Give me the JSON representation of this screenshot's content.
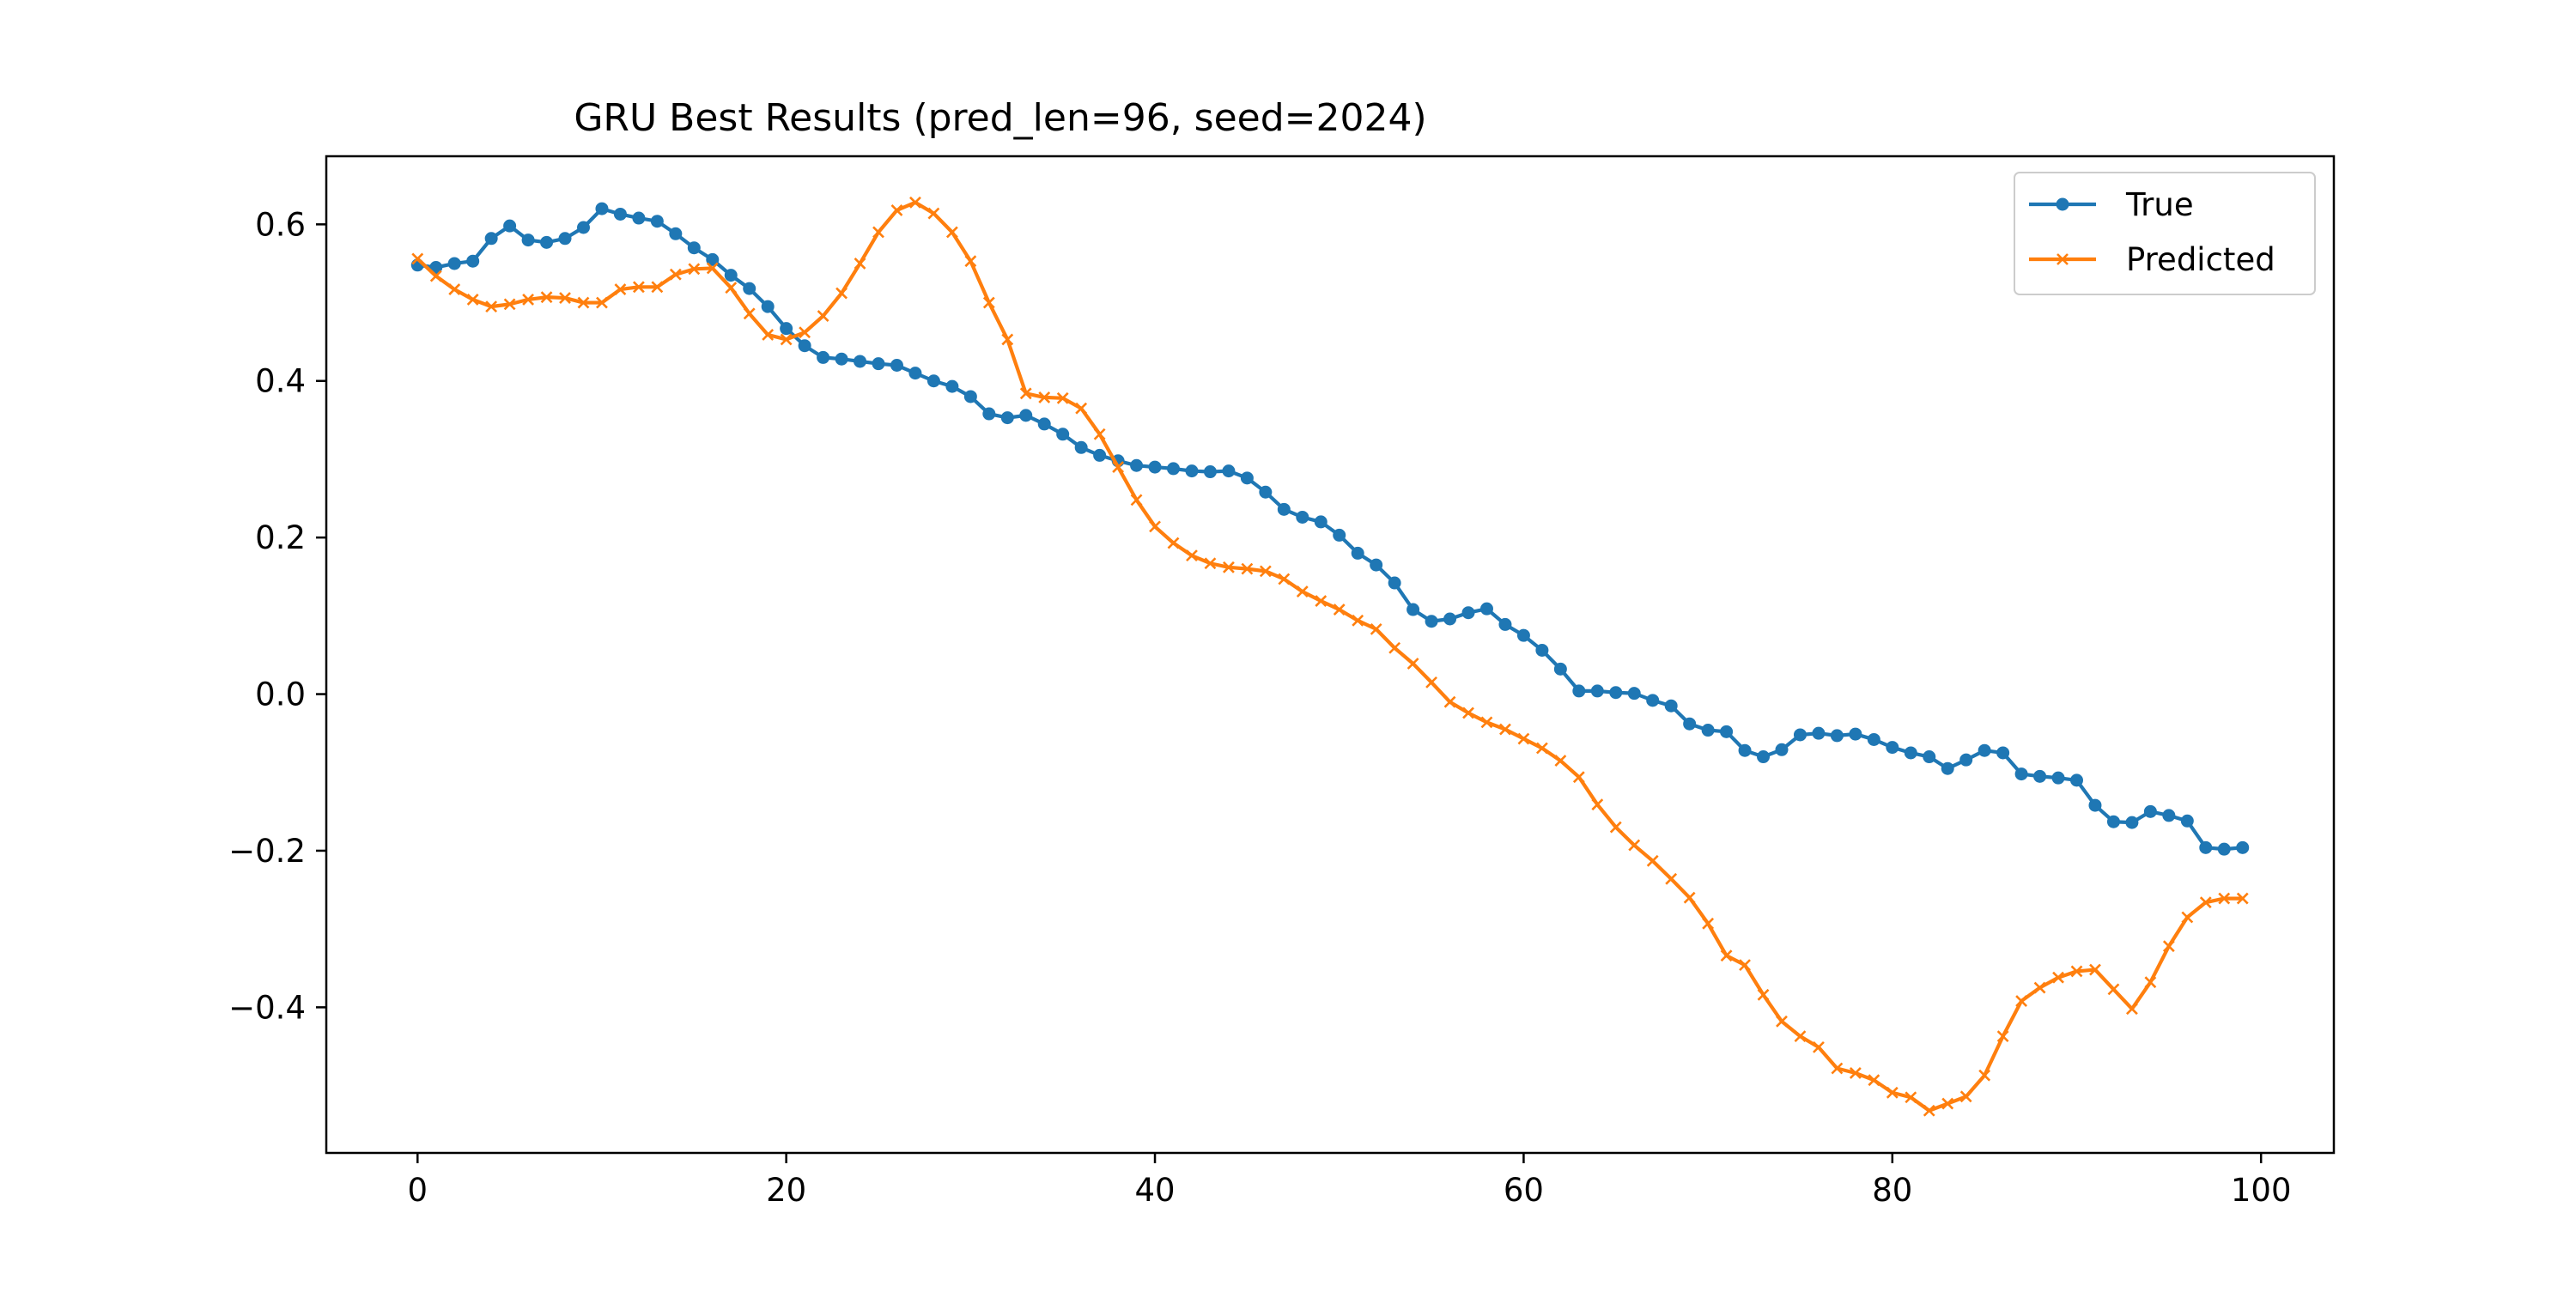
{
  "chart_data": {
    "type": "line",
    "title": "GRU Best Results (pred_len=96, seed=2024)",
    "xlabel": "",
    "ylabel": "",
    "xlim": [
      -4.95,
      103.95
    ],
    "ylim": [
      -0.586,
      0.687
    ],
    "xticks": [
      0,
      20,
      40,
      60,
      80,
      100
    ],
    "xtick_labels": [
      "0",
      "20",
      "40",
      "60",
      "80",
      "100"
    ],
    "yticks": [
      -0.4,
      -0.2,
      0.0,
      0.2,
      0.4,
      0.6
    ],
    "ytick_labels": [
      "−0.4",
      "−0.2",
      "0.0",
      "0.2",
      "0.4",
      "0.6"
    ],
    "grid": false,
    "legend_position": "top-right",
    "x": [
      0,
      1,
      2,
      3,
      4,
      5,
      6,
      7,
      8,
      9,
      10,
      11,
      12,
      13,
      14,
      15,
      16,
      17,
      18,
      19,
      20,
      21,
      22,
      23,
      24,
      25,
      26,
      27,
      28,
      29,
      30,
      31,
      32,
      33,
      34,
      35,
      36,
      37,
      38,
      39,
      40,
      41,
      42,
      43,
      44,
      45,
      46,
      47,
      48,
      49,
      50,
      51,
      52,
      53,
      54,
      55,
      56,
      57,
      58,
      59,
      60,
      61,
      62,
      63,
      64,
      65,
      66,
      67,
      68,
      69,
      70,
      71,
      72,
      73,
      74,
      75,
      76,
      77,
      78,
      79,
      80,
      81,
      82,
      83,
      84,
      85,
      86,
      87,
      88,
      89,
      90,
      91,
      92,
      93,
      94,
      95,
      96,
      97,
      98,
      99
    ],
    "series": [
      {
        "name": "True",
        "color": "#1f77b4",
        "marker": "circle",
        "values": [
          0.548,
          0.545,
          0.55,
          0.553,
          0.582,
          0.598,
          0.58,
          0.577,
          0.582,
          0.596,
          0.62,
          0.613,
          0.608,
          0.604,
          0.588,
          0.57,
          0.555,
          0.535,
          0.518,
          0.495,
          0.467,
          0.445,
          0.43,
          0.428,
          0.425,
          0.422,
          0.42,
          0.41,
          0.4,
          0.393,
          0.38,
          0.358,
          0.353,
          0.356,
          0.345,
          0.332,
          0.315,
          0.305,
          0.298,
          0.292,
          0.29,
          0.288,
          0.285,
          0.284,
          0.285,
          0.276,
          0.258,
          0.236,
          0.226,
          0.22,
          0.203,
          0.18,
          0.165,
          0.142,
          0.108,
          0.093,
          0.096,
          0.104,
          0.109,
          0.089,
          0.075,
          0.056,
          0.032,
          0.004,
          0.004,
          0.002,
          0.001,
          -0.008,
          -0.015,
          -0.038,
          -0.046,
          -0.048,
          -0.072,
          -0.08,
          -0.071,
          -0.052,
          -0.05,
          -0.053,
          -0.051,
          -0.058,
          -0.068,
          -0.075,
          -0.08,
          -0.095,
          -0.084,
          -0.072,
          -0.075,
          -0.102,
          -0.105,
          -0.107,
          -0.11,
          -0.142,
          -0.163,
          -0.164,
          -0.15,
          -0.155,
          -0.162,
          -0.196,
          -0.198,
          -0.196
        ]
      },
      {
        "name": "Predicted",
        "color": "#ff7f0e",
        "marker": "x",
        "values": [
          0.556,
          0.534,
          0.517,
          0.504,
          0.495,
          0.498,
          0.504,
          0.507,
          0.506,
          0.5,
          0.5,
          0.517,
          0.52,
          0.52,
          0.536,
          0.543,
          0.544,
          0.519,
          0.486,
          0.459,
          0.453,
          0.462,
          0.483,
          0.512,
          0.55,
          0.59,
          0.618,
          0.628,
          0.614,
          0.59,
          0.553,
          0.5,
          0.453,
          0.384,
          0.379,
          0.378,
          0.365,
          0.332,
          0.29,
          0.248,
          0.214,
          0.193,
          0.177,
          0.167,
          0.162,
          0.16,
          0.157,
          0.147,
          0.131,
          0.119,
          0.108,
          0.094,
          0.083,
          0.059,
          0.039,
          0.015,
          -0.01,
          -0.024,
          -0.036,
          -0.045,
          -0.057,
          -0.069,
          -0.085,
          -0.106,
          -0.141,
          -0.17,
          -0.193,
          -0.213,
          -0.236,
          -0.26,
          -0.293,
          -0.334,
          -0.346,
          -0.384,
          -0.418,
          -0.437,
          -0.451,
          -0.478,
          -0.484,
          -0.493,
          -0.509,
          -0.515,
          -0.532,
          -0.523,
          -0.514,
          -0.487,
          -0.437,
          -0.392,
          -0.375,
          -0.362,
          -0.354,
          -0.352,
          -0.377,
          -0.402,
          -0.368,
          -0.322,
          -0.285,
          -0.266,
          -0.261,
          -0.261
        ]
      }
    ]
  }
}
